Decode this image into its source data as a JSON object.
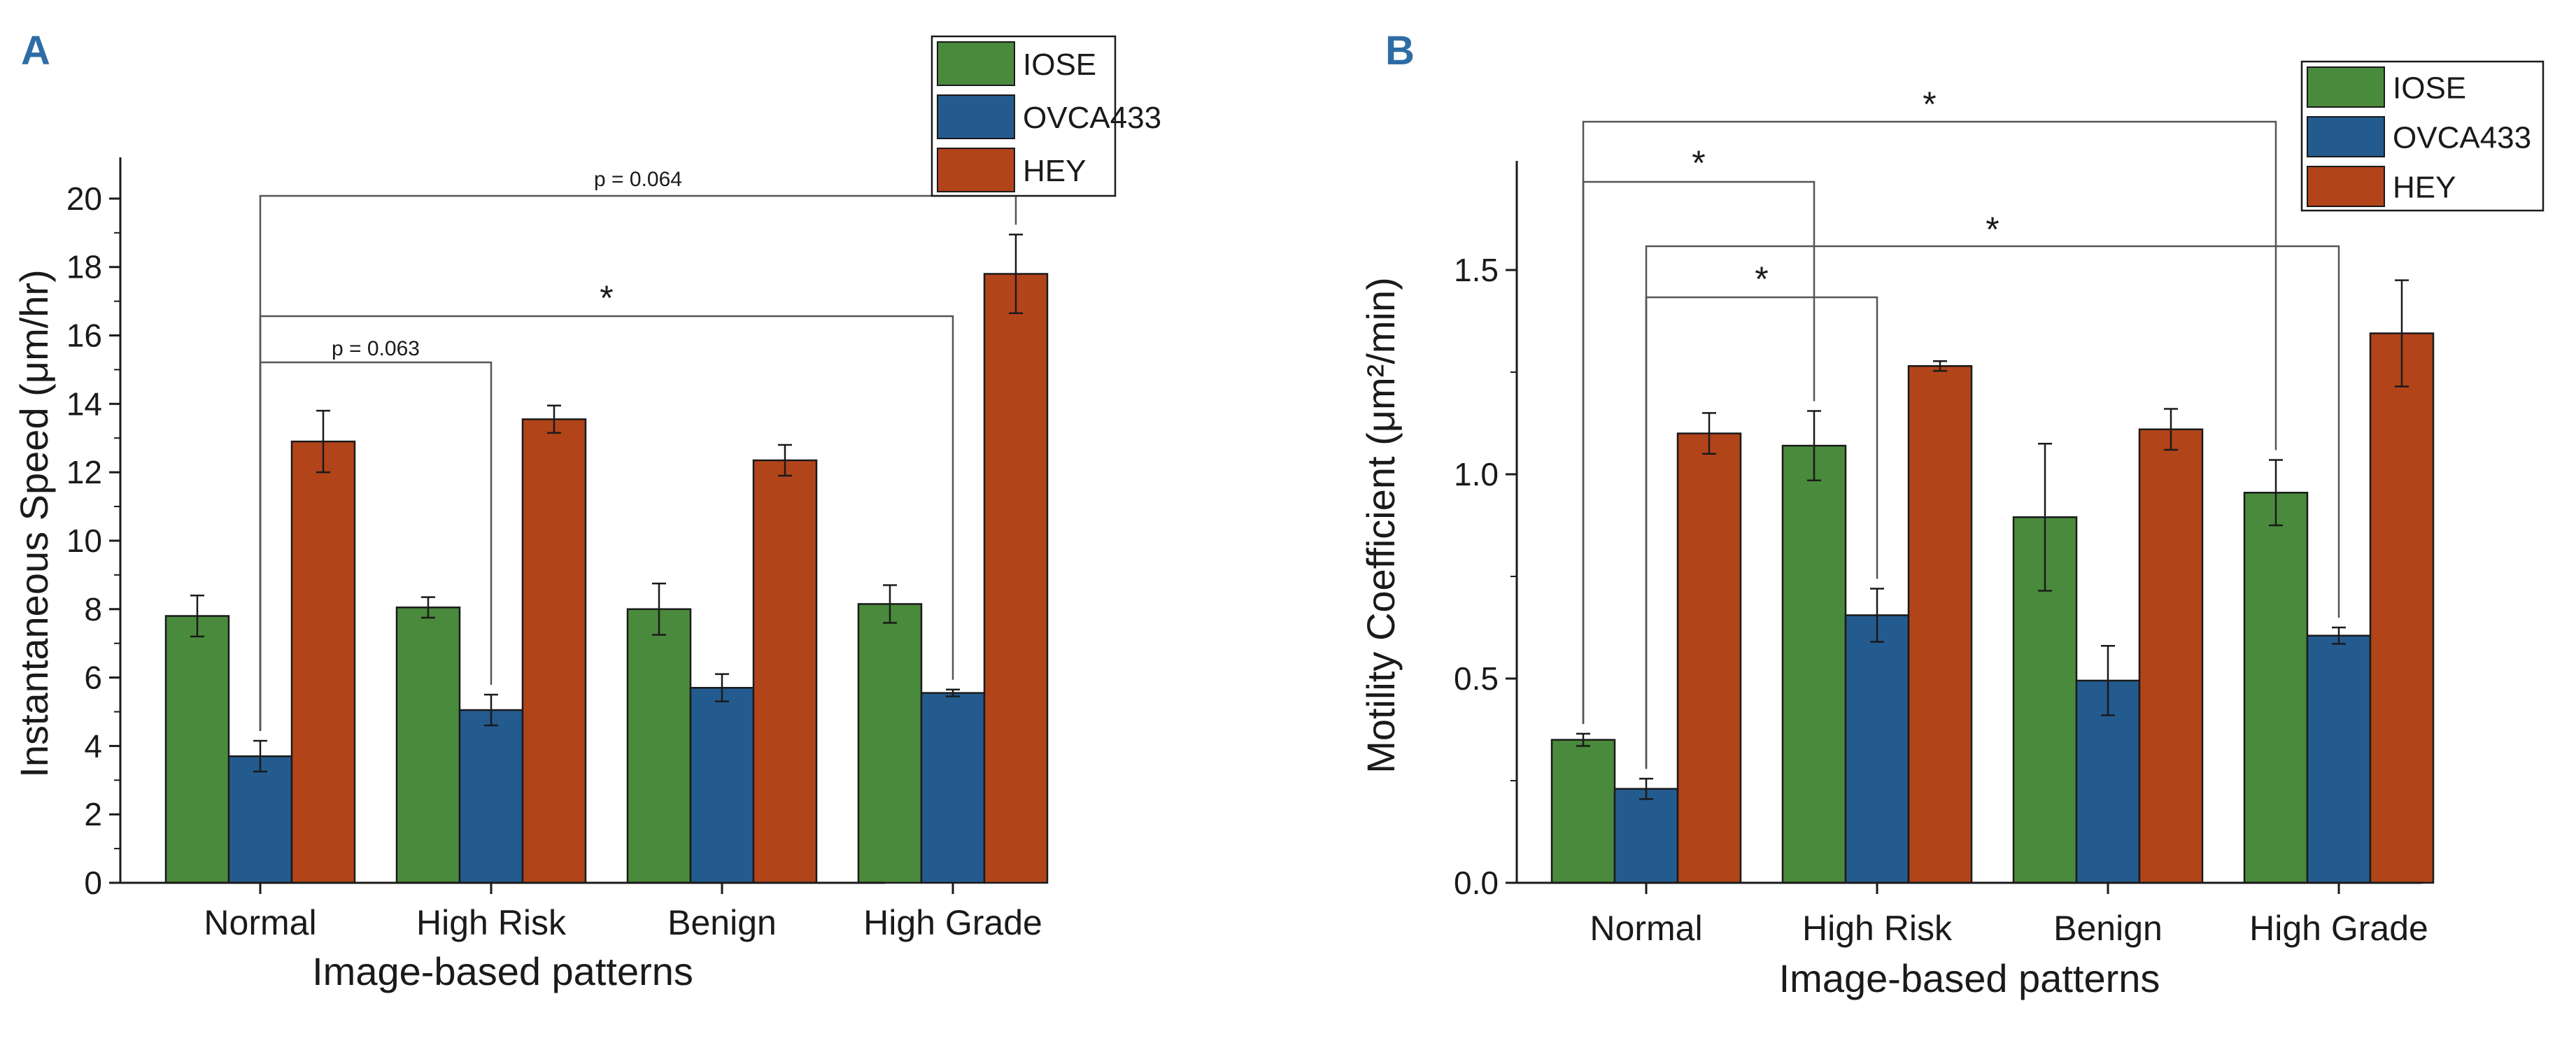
{
  "colors": {
    "IOSE": "#4a8a3c",
    "OVCA433": "#245b8f",
    "HEY": "#b2441a",
    "panel_letter": "#2e6da4",
    "axis": "#1a1a1a"
  },
  "chart_data": [
    {
      "panel": "A",
      "type": "bar",
      "categories": [
        "Normal",
        "High Risk",
        "Benign",
        "High Grade"
      ],
      "series": [
        {
          "name": "IOSE",
          "values": [
            7.8,
            8.05,
            8.0,
            8.15
          ],
          "errors": [
            0.6,
            0.3,
            0.75,
            0.55
          ]
        },
        {
          "name": "OVCA433",
          "values": [
            3.7,
            5.05,
            5.7,
            5.55
          ],
          "errors": [
            0.45,
            0.45,
            0.4,
            0.1
          ]
        },
        {
          "name": "HEY",
          "values": [
            12.9,
            13.55,
            12.35,
            17.8
          ],
          "errors": [
            0.9,
            0.4,
            0.45,
            1.15
          ]
        }
      ],
      "xlabel": "Image-based patterns",
      "ylabel": "Instantaneous Speed (μm/hr)",
      "ylim": [
        0,
        21
      ],
      "yticks": [
        "0",
        "2",
        "4",
        "6",
        "8",
        "10",
        "12",
        "14",
        "16",
        "18",
        "20"
      ],
      "legend_position": "top-right",
      "annotations": [
        {
          "label": "p = 0.064",
          "from": "Normal/OVCA433",
          "to": "High Grade/HEY",
          "kind": "text"
        },
        {
          "label": "*",
          "from": "Normal/OVCA433",
          "to": "High Grade/OVCA433",
          "kind": "star"
        },
        {
          "label": "p = 0.063",
          "from": "Normal/OVCA433",
          "to": "High Risk/OVCA433",
          "kind": "text"
        }
      ]
    },
    {
      "panel": "B",
      "type": "bar",
      "categories": [
        "Normal",
        "High Risk",
        "Benign",
        "High Grade"
      ],
      "series": [
        {
          "name": "IOSE",
          "values": [
            0.35,
            1.07,
            0.895,
            0.955
          ],
          "errors": [
            0.015,
            0.085,
            0.18,
            0.08
          ]
        },
        {
          "name": "OVCA433",
          "values": [
            0.23,
            0.655,
            0.495,
            0.605
          ],
          "errors": [
            0.025,
            0.065,
            0.085,
            0.02
          ]
        },
        {
          "name": "HEY",
          "values": [
            1.1,
            1.265,
            1.11,
            1.345
          ],
          "errors": [
            0.05,
            0.012,
            0.05,
            0.13
          ]
        }
      ],
      "xlabel": "Image-based patterns",
      "ylabel": "Motility Coefficient (μm²/min)",
      "ylim": [
        0,
        1.75
      ],
      "yticks": [
        "0.0",
        "0.5",
        "1.0",
        "1.5"
      ],
      "legend_position": "top-right",
      "annotations": [
        {
          "label": "*",
          "from": "Normal/IOSE",
          "to": "High Grade/IOSE",
          "kind": "star"
        },
        {
          "label": "*",
          "from": "Normal/IOSE",
          "to": "High Risk/IOSE",
          "kind": "star"
        },
        {
          "label": "*",
          "from": "Normal/OVCA433",
          "to": "High Grade/OVCA433",
          "kind": "star"
        },
        {
          "label": "*",
          "from": "Normal/OVCA433",
          "to": "High Risk/OVCA433",
          "kind": "star"
        }
      ]
    }
  ]
}
